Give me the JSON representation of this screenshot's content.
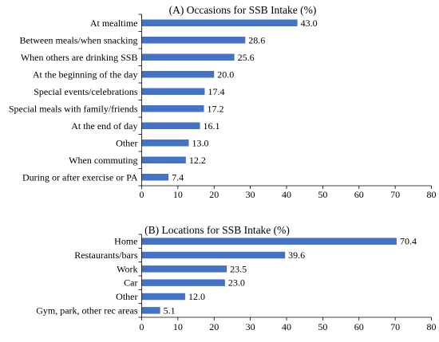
{
  "colors": {
    "bar": "#4472C4",
    "axis": "#000000",
    "text": "#000000"
  },
  "chart_data": [
    {
      "type": "bar",
      "orientation": "horizontal",
      "title": "(A) Occasions for SSB Intake (%)",
      "xlabel": "",
      "ylabel": "",
      "xlim": [
        0,
        80
      ],
      "xticks": [
        0,
        10,
        20,
        30,
        40,
        50,
        60,
        70,
        80
      ],
      "grid": false,
      "categories": [
        "At mealtime",
        "Between meals/when snacking",
        "When others are drinking SSB",
        "At the beginning of the day",
        "Special events/celebrations",
        "Special meals with family/friends",
        "At the end of day",
        "Other",
        "When commuting",
        "During or after exercise or PA"
      ],
      "values": [
        43.0,
        28.6,
        25.6,
        20.0,
        17.4,
        17.2,
        16.1,
        13.0,
        12.2,
        7.4
      ],
      "value_labels": [
        "43.0",
        "28.6",
        "25.6",
        "20.0",
        "17.4",
        "17.2",
        "16.1",
        "13.0",
        "12.2",
        "7.4"
      ]
    },
    {
      "type": "bar",
      "orientation": "horizontal",
      "title": "(B) Locations for SSB Intake (%)",
      "xlabel": "",
      "ylabel": "",
      "xlim": [
        0,
        80
      ],
      "xticks": [
        0,
        10,
        20,
        30,
        40,
        50,
        60,
        70,
        80
      ],
      "grid": false,
      "categories": [
        "Home",
        "Restaurants/bars",
        "Work",
        "Car",
        "Other",
        "Gym, park, other rec areas"
      ],
      "values": [
        70.4,
        39.6,
        23.5,
        23.0,
        12.0,
        5.1
      ],
      "value_labels": [
        "70.4",
        "39.6",
        "23.5",
        "23.0",
        "12.0",
        "5.1"
      ]
    }
  ]
}
